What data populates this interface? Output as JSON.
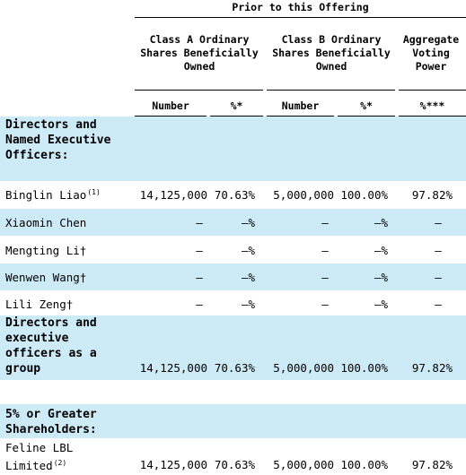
{
  "header": {
    "offering": "Prior to this Offering",
    "class_a": "Class  A Ordinary Shares Beneficially Owned",
    "class_b": "Class  B Ordinary Shares Beneficially Owned",
    "aggregate": "Aggregate Voting Power",
    "col_number_a": "Number",
    "col_pct_a": "%*",
    "col_number_b": "Number",
    "col_pct_b": "%*",
    "col_voting": "%***"
  },
  "sections": {
    "directors": "Directors and Named Executive Officers:",
    "group": "Directors and executive officers as a group",
    "five_pct": "5% or Greater Shareholders:"
  },
  "rows": [
    {
      "name": "Binglin Liao",
      "note": "(1)",
      "num_a": "14,125,000",
      "pct_a": "70.63%",
      "num_b": "5,000,000",
      "pct_b": "100.00%",
      "voting": "97.82%"
    },
    {
      "name": "Xiaomin Chen",
      "note": "",
      "num_a": "—",
      "pct_a": "—%",
      "num_b": "—",
      "pct_b": "—%",
      "voting": "—"
    },
    {
      "name": "Mengting Li†",
      "note": "",
      "num_a": "—",
      "pct_a": "—%",
      "num_b": "—",
      "pct_b": "—%",
      "voting": "—"
    },
    {
      "name": "Wenwen Wang†",
      "note": "",
      "num_a": "—",
      "pct_a": "—%",
      "num_b": "—",
      "pct_b": "—%",
      "voting": "—"
    },
    {
      "name": "Lili Zeng†",
      "note": "",
      "num_a": "—",
      "pct_a": "—%",
      "num_b": "—",
      "pct_b": "—%",
      "voting": "—"
    }
  ],
  "group_row": {
    "num_a": "14,125,000",
    "pct_a": "70.63%",
    "num_b": "5,000,000",
    "pct_b": "100.00%",
    "voting": "97.82%"
  },
  "feline_row": {
    "name_line1": "Feline LBL",
    "name_line2": "Limited",
    "note": "(2)",
    "num_a": "14,125,000",
    "pct_a": "70.63%",
    "num_b": "5,000,000",
    "pct_b": "100.00%",
    "voting": "97.82%"
  },
  "colors": {
    "band": "#cdeaf7"
  }
}
